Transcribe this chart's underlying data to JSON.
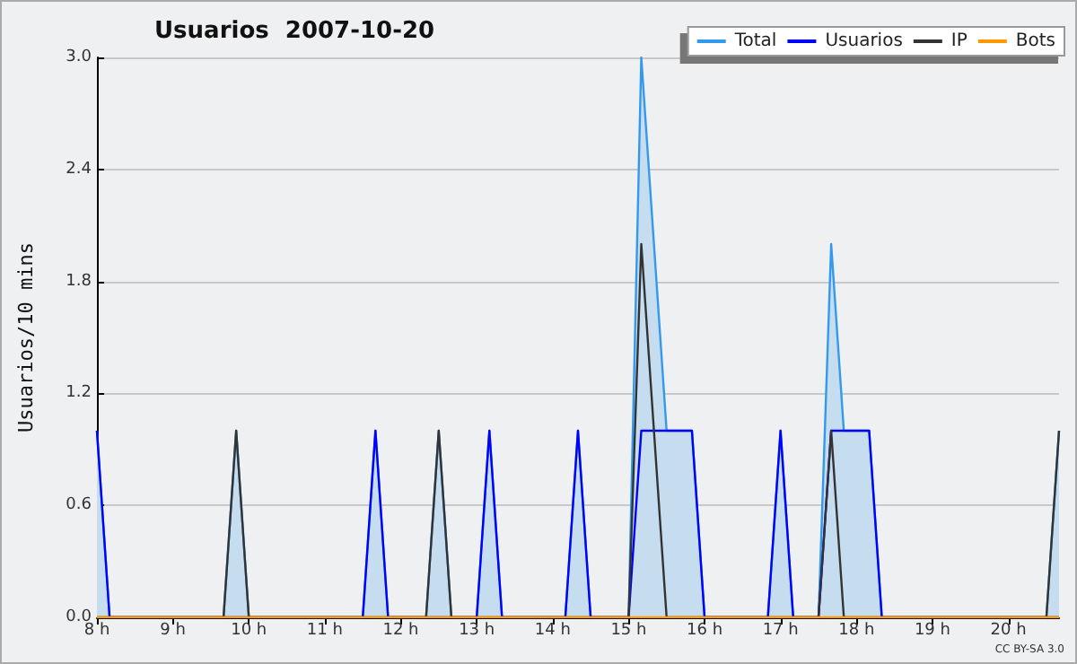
{
  "chart_data": {
    "type": "line",
    "title": "Usuarios  2007-10-20",
    "ylabel": "Usuarios/10 mins",
    "annotations": [
      "CC BY-SA 3.0"
    ],
    "xlim": [
      8,
      20.6667
    ],
    "xticks": [
      {
        "value": 8,
        "label": "8 h"
      },
      {
        "value": 9,
        "label": "9 h"
      },
      {
        "value": 10,
        "label": "10 h"
      },
      {
        "value": 11,
        "label": "11 h"
      },
      {
        "value": 12,
        "label": "12 h"
      },
      {
        "value": 13,
        "label": "13 h"
      },
      {
        "value": 14,
        "label": "14 h"
      },
      {
        "value": 15,
        "label": "15 h"
      },
      {
        "value": 16,
        "label": "16 h"
      },
      {
        "value": 17,
        "label": "17 h"
      },
      {
        "value": 18,
        "label": "18 h"
      },
      {
        "value": 19,
        "label": "19 h"
      },
      {
        "value": 20,
        "label": "20 h"
      }
    ],
    "ylim": [
      0,
      3
    ],
    "yticks": [
      {
        "value": 0,
        "label": "0.0"
      },
      {
        "value": 0.6,
        "label": "0.6"
      },
      {
        "value": 1.2,
        "label": "1.2"
      },
      {
        "value": 1.8,
        "label": "1.8"
      },
      {
        "value": 2.4,
        "label": "2.4"
      },
      {
        "value": 3,
        "label": "3.0"
      }
    ],
    "grid": "y",
    "legend": "top right",
    "marker": "none",
    "series": [
      {
        "name": "Total",
        "type": "area",
        "color": "#3399ee",
        "x": [
          8,
          8.1667,
          9.6667,
          9.8333,
          10,
          11.5,
          11.6667,
          11.8333,
          12.3333,
          12.5,
          12.6667,
          13,
          13.1667,
          13.3333,
          14.1667,
          14.3333,
          14.5,
          15,
          15.1667,
          15.3333,
          15.5,
          15.8333,
          16,
          16.8333,
          17,
          17.1667,
          17.5,
          17.6667,
          17.8333,
          18.1667,
          18.3333,
          20.5,
          20.6667
        ],
        "values": [
          1,
          0,
          0,
          1,
          0,
          0,
          1,
          0,
          0,
          1,
          0,
          0,
          1,
          0,
          0,
          1,
          0,
          0,
          3,
          2,
          1,
          1,
          0,
          0,
          1,
          0,
          0,
          2,
          1,
          1,
          0,
          0,
          1
        ]
      },
      {
        "name": "Usuarios",
        "color": "#0000ff",
        "x": [
          8,
          8.1667,
          11.5,
          11.6667,
          11.8333,
          13,
          13.1667,
          13.3333,
          14.1667,
          14.3333,
          14.5,
          15,
          15.1667,
          15.8333,
          16,
          16.8333,
          17,
          17.1667,
          17.5,
          17.6667,
          18.1667,
          18.3333,
          20.6667
        ],
        "values": [
          1,
          0,
          0,
          1,
          0,
          0,
          1,
          0,
          0,
          1,
          0,
          0,
          1,
          1,
          0,
          0,
          1,
          0,
          0,
          1,
          1,
          0,
          0
        ]
      },
      {
        "name": "IP",
        "color": "#333333",
        "x": [
          8,
          9.6667,
          9.8333,
          10,
          12.3333,
          12.5,
          12.6667,
          15,
          15.1667,
          15.3333,
          15.5,
          17.5,
          17.6667,
          17.8333,
          20.5,
          20.6667
        ],
        "values": [
          0,
          0,
          1,
          0,
          0,
          1,
          0,
          0,
          2,
          1,
          0,
          0,
          1,
          0,
          0,
          1
        ]
      },
      {
        "name": "Bots",
        "color": "#ff9900",
        "x": [
          8,
          20.6667
        ],
        "values": [
          0,
          0
        ]
      }
    ]
  }
}
